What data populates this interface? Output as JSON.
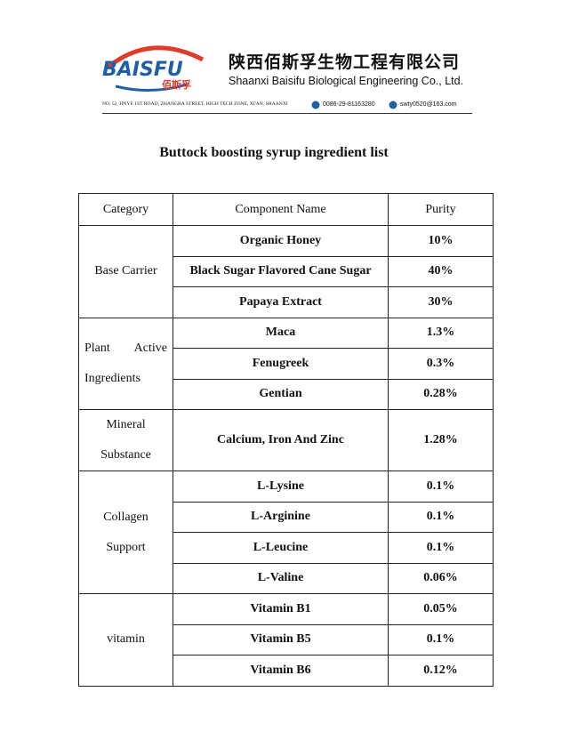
{
  "header": {
    "logo_text": "BAISFU",
    "logo_cn": "佰斯孚",
    "company_cn": "陕西佰斯孚生物工程有限公司",
    "company_en": "Shaanxi Baisifu Biological Engineering Co., Ltd.",
    "address": "NO. 52, JINYE 1ST ROAD, ZHANGBA STREET, HIGH TECH ZONE, XI'AN, SHAANXI",
    "phone": "0086-29-81163280",
    "email": "swty0520@163.com"
  },
  "title": "Buttock boosting syrup ingredient list",
  "table": {
    "columns": [
      "Category",
      "Component Name",
      "Purity"
    ],
    "groups": [
      {
        "category": [
          "Base Carrier"
        ],
        "rows": [
          [
            "Organic Honey",
            "10%"
          ],
          [
            "Black Sugar Flavored Cane Sugar",
            "40%"
          ],
          [
            "Papaya Extract",
            "30%"
          ]
        ]
      },
      {
        "category": [
          "Plant Active",
          "Ingredients"
        ],
        "rows": [
          [
            "Maca",
            "1.3%"
          ],
          [
            "Fenugreek",
            "0.3%"
          ],
          [
            "Gentian",
            "0.28%"
          ]
        ]
      },
      {
        "category": [
          "Mineral",
          "Substance"
        ],
        "rows": [
          [
            "Calcium, Iron And Zinc",
            "1.28%"
          ]
        ]
      },
      {
        "category": [
          "Collagen",
          "Support"
        ],
        "rows": [
          [
            "L-Lysine",
            "0.1%"
          ],
          [
            "L-Arginine",
            "0.1%"
          ],
          [
            "L-Leucine",
            "0.1%"
          ],
          [
            "L-Valine",
            "0.06%"
          ]
        ]
      },
      {
        "category": [
          "vitamin"
        ],
        "rows": [
          [
            "Vitamin B1",
            "0.05%"
          ],
          [
            "Vitamin B5",
            "0.1%"
          ],
          [
            "Vitamin B6",
            "0.12%"
          ]
        ]
      }
    ]
  }
}
